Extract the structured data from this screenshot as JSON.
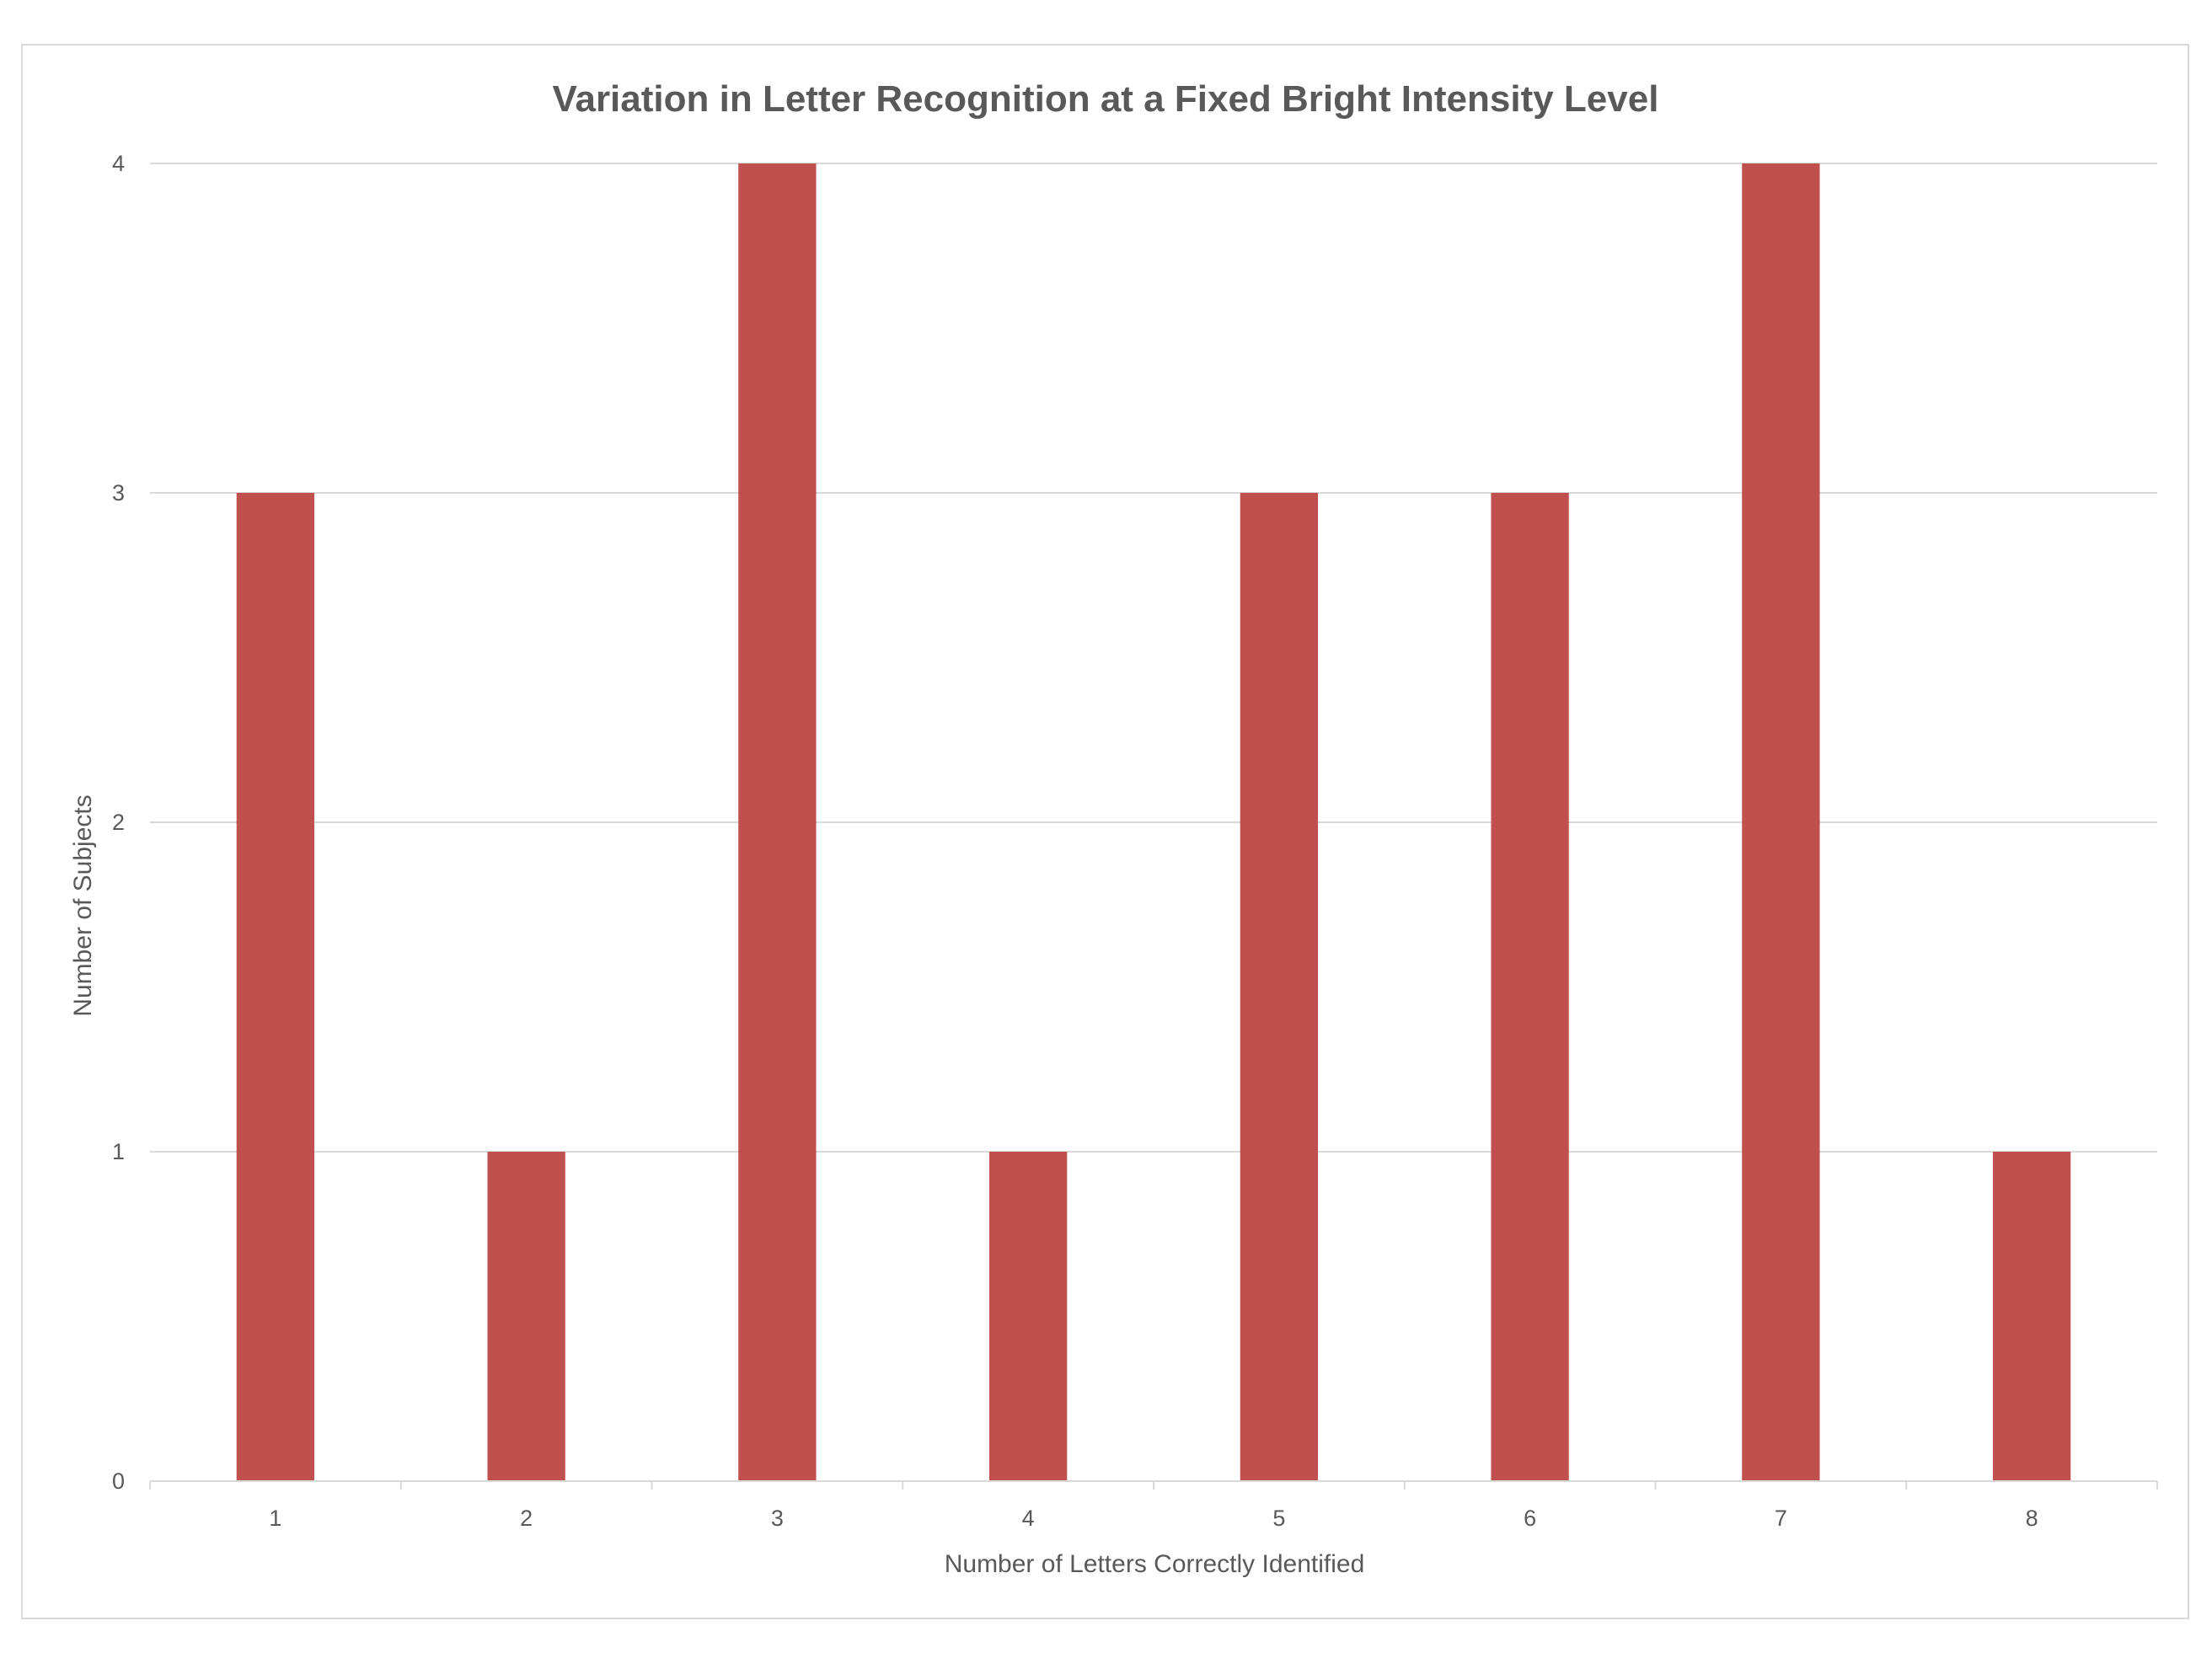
{
  "chart_data": {
    "type": "bar",
    "title": "Variation in Letter Recognition at a Fixed Bright Intensity Level",
    "xlabel": "Number of Letters Correctly Identified",
    "ylabel": "Number of Subjects",
    "categories": [
      "1",
      "2",
      "3",
      "4",
      "5",
      "6",
      "7",
      "8"
    ],
    "values": [
      3,
      1,
      4,
      1,
      3,
      3,
      4,
      1
    ],
    "ylim": [
      0,
      4
    ],
    "yticks": [
      "0",
      "1",
      "2",
      "3",
      "4"
    ],
    "grid": true,
    "legend": "none",
    "bar_color": "#c0504d"
  }
}
